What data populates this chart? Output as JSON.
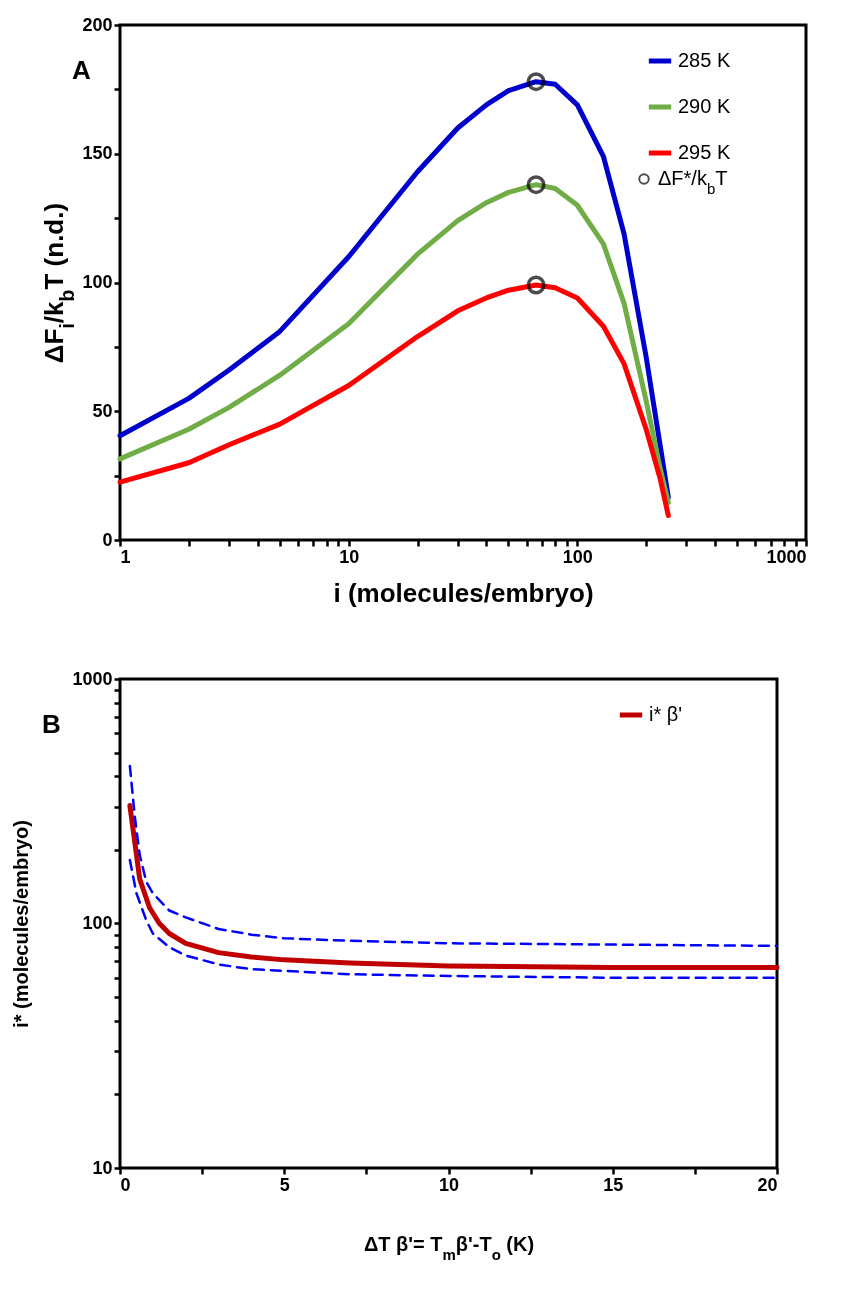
{
  "chart_data": [
    {
      "type": "line",
      "title": "A",
      "xlabel": "i  (molecules/embryo)",
      "ylabel": "ΔF$_{i}$/k$_{b}$T (n.d.)",
      "log": "x",
      "legend": "top right",
      "x": [
        1,
        2,
        3,
        5,
        10,
        20,
        30,
        40,
        50,
        66,
        80,
        100,
        130,
        160,
        200,
        230,
        250
      ],
      "xlim": [
        1,
        1000
      ],
      "xticks": [
        1,
        {
          "value": 2,
          "label": null
        },
        {
          "value": 3,
          "label": null
        },
        {
          "value": 4,
          "label": null
        },
        {
          "value": 5,
          "label": null
        },
        {
          "value": 6,
          "label": null
        },
        {
          "value": 7,
          "label": null
        },
        {
          "value": 8,
          "label": null
        },
        {
          "value": 9,
          "label": null
        },
        10,
        {
          "value": 20,
          "label": null
        },
        {
          "value": 30,
          "label": null
        },
        {
          "value": 40,
          "label": null
        },
        {
          "value": 50,
          "label": null
        },
        {
          "value": 60,
          "label": null
        },
        {
          "value": 70,
          "label": null
        },
        {
          "value": 80,
          "label": null
        },
        {
          "value": 90,
          "label": null
        },
        100,
        {
          "value": 200,
          "label": null
        },
        {
          "value": 300,
          "label": null
        },
        {
          "value": 400,
          "label": null
        },
        {
          "value": 500,
          "label": null
        },
        {
          "value": 600,
          "label": null
        },
        {
          "value": 700,
          "label": null
        },
        {
          "value": 800,
          "label": null
        },
        {
          "value": 900,
          "label": null
        },
        1000
      ],
      "ylim": [
        0,
        200
      ],
      "yticks": [
        0,
        {
          "value": 25,
          "label": null
        },
        50,
        {
          "value": 75,
          "label": null
        },
        100,
        {
          "value": 125,
          "label": null
        },
        150,
        {
          "value": 175,
          "label": null
        },
        200
      ],
      "series": [
        {
          "name": "285 K",
          "color": "#0000cc",
          "values": [
            40.5,
            55,
            66,
            81,
            110,
            143,
            160,
            169,
            174.5,
            178,
            177,
            169,
            149,
            119,
            71,
            37,
            16.5
          ]
        },
        {
          "name": "290 K",
          "color": "#70ad47",
          "values": [
            31.5,
            43,
            51.5,
            64,
            84,
            111,
            124,
            131,
            135,
            138,
            136.5,
            130,
            115,
            92,
            54,
            28,
            14.5
          ]
        },
        {
          "name": "295 K",
          "color": "#ff0000",
          "values": [
            22.5,
            30,
            37,
            45,
            60,
            79,
            89,
            94,
            97,
            99,
            98,
            94,
            83,
            68.5,
            43,
            24,
            9.5
          ]
        },
        {
          "type": "scatter",
          "name": "ΔF*/k$_{b}$T",
          "color": "#000000",
          "marker": "circle",
          "x": [
            66,
            66,
            66
          ],
          "values": [
            178,
            138,
            99
          ]
        }
      ]
    },
    {
      "type": "line",
      "title": "B",
      "xlabel": "ΔT β'= T$_{m}$β'-T$_{o}$  (K)",
      "ylabel": "i* (molecules/embryo)",
      "log": "y",
      "legend": "top right",
      "xlim": [
        0,
        20
      ],
      "xticks": [
        0,
        {
          "value": 2.5,
          "label": null
        },
        5,
        {
          "value": 7.5,
          "label": null
        },
        10,
        {
          "value": 12.5,
          "label": null
        },
        15,
        {
          "value": 17.5,
          "label": null
        },
        20
      ],
      "ylim": [
        10,
        1000
      ],
      "yticks": [
        10,
        {
          "value": 20,
          "label": null
        },
        {
          "value": 30,
          "label": null
        },
        {
          "value": 40,
          "label": null
        },
        {
          "value": 50,
          "label": null
        },
        {
          "value": 60,
          "label": null
        },
        {
          "value": 70,
          "label": null
        },
        {
          "value": 80,
          "label": null
        },
        {
          "value": 90,
          "label": null
        },
        100,
        {
          "value": 200,
          "label": null
        },
        {
          "value": 300,
          "label": null
        },
        {
          "value": 400,
          "label": null
        },
        {
          "value": 500,
          "label": null
        },
        {
          "value": 600,
          "label": null
        },
        {
          "value": 700,
          "label": null
        },
        {
          "value": 800,
          "label": null
        },
        {
          "value": 900,
          "label": null
        },
        1000
      ],
      "series": [
        {
          "name": "i* β'",
          "color": "#c00000",
          "x": [
            0.3,
            0.6,
            0.9,
            1.2,
            1.5,
            2,
            3,
            4,
            5,
            7,
            10,
            15,
            20
          ],
          "values": [
            304,
            152,
            116,
            100,
            91,
            83,
            76,
            73,
            71,
            69,
            67,
            66,
            66
          ]
        },
        {
          "color": "#0000ff",
          "line_style": "dashed",
          "x": [
            0.3,
            0.45,
            0.6,
            0.8,
            1,
            1.5,
            2,
            3,
            4,
            5,
            7,
            10,
            15,
            20
          ],
          "values": [
            441,
            274,
            191,
            148,
            133,
            113,
            106,
            95,
            90,
            87,
            85,
            83,
            82,
            81
          ]
        },
        {
          "color": "#0000ff",
          "line_style": "dashed",
          "x": [
            0.3,
            0.5,
            0.8,
            1,
            1.5,
            2,
            3,
            4,
            5,
            7,
            10,
            15,
            20
          ],
          "values": [
            182,
            133,
            103,
            91,
            80,
            74,
            68,
            65,
            64,
            62,
            61,
            60,
            60
          ]
        }
      ]
    }
  ]
}
